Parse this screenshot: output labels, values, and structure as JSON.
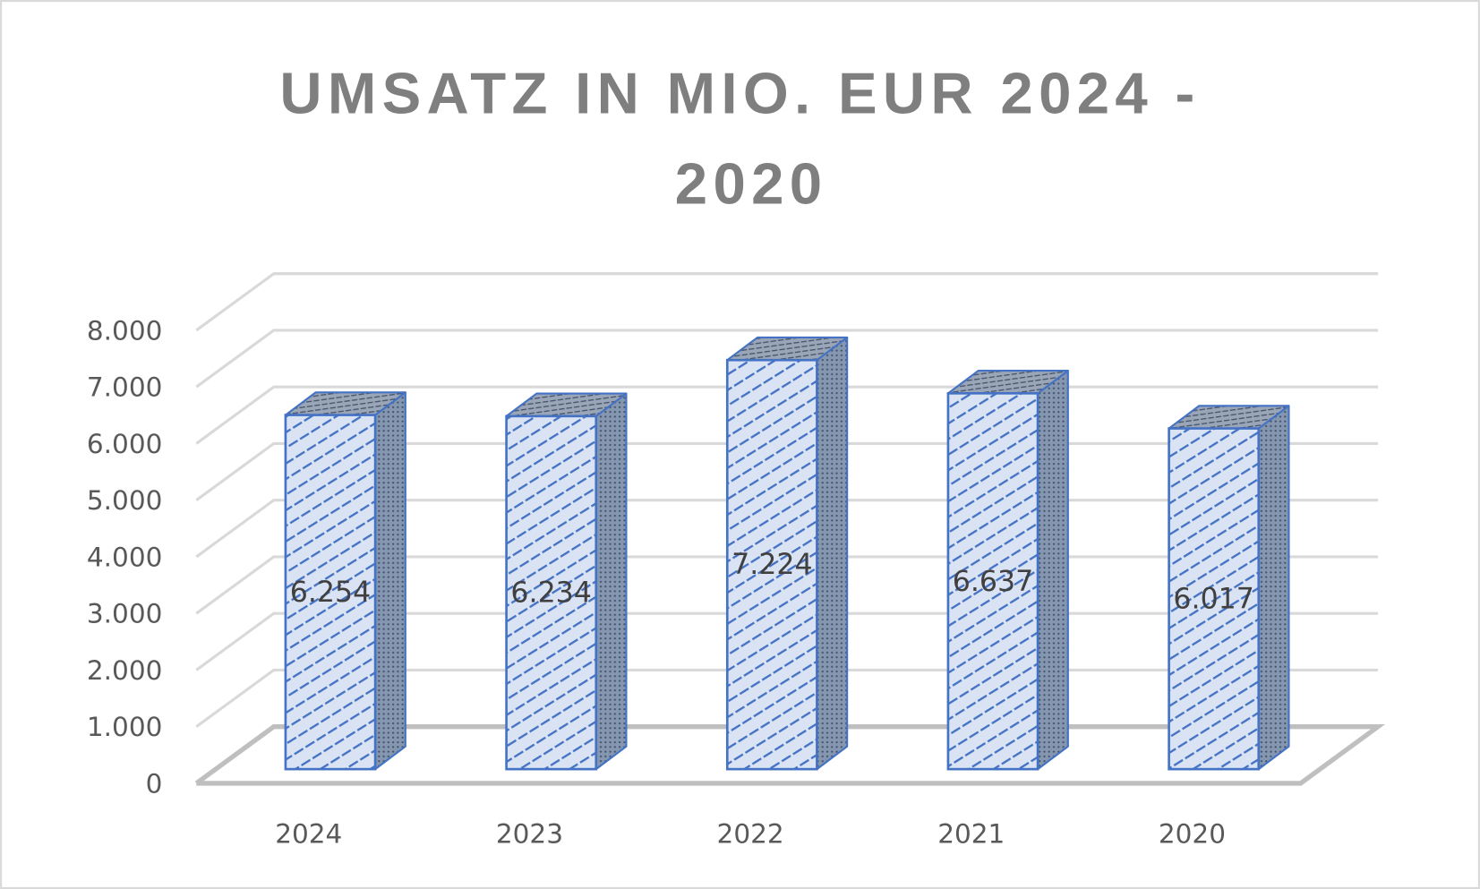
{
  "chart_data": {
    "type": "bar",
    "style": "3d-column",
    "title": "UMSATZ IN MIO. EUR 2024 - 2020",
    "title_lines": [
      "UMSATZ IN MIO. EUR 2024 -",
      "2020"
    ],
    "categories": [
      "2024",
      "2023",
      "2022",
      "2021",
      "2020"
    ],
    "values": [
      6254,
      6234,
      7224,
      6637,
      6017
    ],
    "data_labels": [
      "6.254",
      "6.234",
      "7.224",
      "6.637",
      "6.017"
    ],
    "ylim": [
      0,
      8000
    ],
    "y_ticks": [
      0,
      1000,
      2000,
      3000,
      4000,
      5000,
      6000,
      7000,
      8000
    ],
    "y_tick_labels": [
      "0",
      "1.000",
      "2.000",
      "3.000",
      "4.000",
      "5.000",
      "6.000",
      "7.000",
      "8.000"
    ],
    "xlabel": "",
    "ylabel": "",
    "grid": true,
    "legend": "none",
    "colors": {
      "bar_outline": "#4472c4",
      "bar_front": "#dae3f3",
      "bar_side": "#8496b0",
      "gridline": "#d9d9d9",
      "floor": "#bfbfbf",
      "title": "#7f7f7f",
      "axis_text": "#595959"
    }
  }
}
